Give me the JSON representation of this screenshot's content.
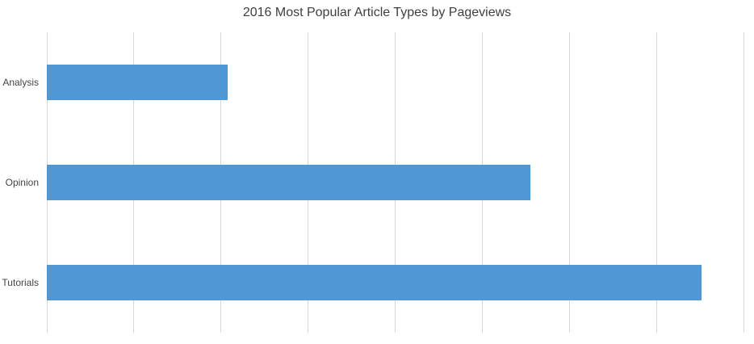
{
  "chart_data": {
    "type": "bar",
    "orientation": "horizontal",
    "title": "2016 Most Popular Article Types by Pageviews",
    "categories": [
      "Analysis",
      "Opinion",
      "Tutorials"
    ],
    "values": [
      2.08,
      5.55,
      7.52
    ],
    "values_unit": "gridline-intervals",
    "xlim": [
      0,
      8
    ],
    "gridlines": 9,
    "x_tick_labels_visible": false,
    "grid": "vertical-only",
    "legend": "none"
  },
  "colors": {
    "bar": "#4f98d4",
    "gridline": "#d9d9d9",
    "title_text": "#3f3f3f",
    "label_text": "#444444",
    "background": "#ffffff"
  }
}
